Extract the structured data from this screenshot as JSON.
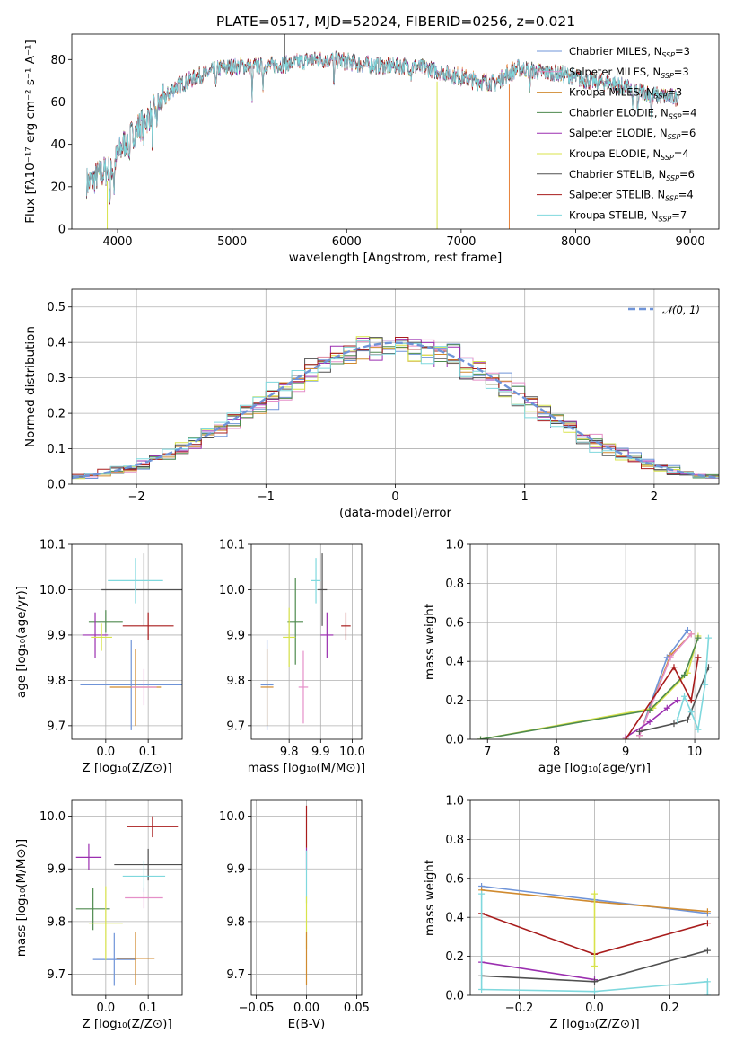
{
  "figure_title": "PLATE=0517, MJD=52024, FIBERID=0256, z=0.021",
  "colors": {
    "Chabrier MILES": "#6f94d8",
    "Salpeter MILES": "#e58fc8",
    "Kroupa MILES": "#d08a2f",
    "Chabrier ELODIE": "#4e8a4e",
    "Salpeter ELODIE": "#9b2fb0",
    "Kroupa ELODIE": "#d8e34a",
    "Chabrier STELIB": "#505050",
    "Salpeter STELIB": "#a81c1c",
    "Kroupa STELIB": "#7fd8dd",
    "orange_model": "#e8823a",
    "normal_dashed": "#6f94d8"
  },
  "chart_data": [
    {
      "id": "spectrum",
      "type": "line",
      "xlabel": "wavelength [Angstrom, rest frame]",
      "ylabel": "Flux [fλ10⁻¹⁷ erg cm⁻² s⁻¹ A⁻¹]",
      "xlim": [
        3600,
        9250
      ],
      "ylim": [
        0,
        92
      ],
      "xticks": [
        4000,
        5000,
        6000,
        7000,
        8000,
        9000
      ],
      "yticks": [
        0,
        20,
        40,
        60,
        80
      ],
      "grid": false,
      "legend_position": "top-right",
      "legend": [
        "Chabrier MILES, N_SSP=3",
        "Salpeter MILES, N_SSP=3",
        "Kroupa MILES, N_SSP=3",
        "Chabrier ELODIE, N_SSP=4",
        "Salpeter ELODIE, N_SSP=6",
        "Kroupa ELODIE, N_SSP=4",
        "Chabrier STELIB, N_SSP=6",
        "Salpeter STELIB, N_SSP=4",
        "Kroupa STELIB, N_SSP=7"
      ],
      "continuum": [
        [
          3750,
          22
        ],
        [
          3850,
          26
        ],
        [
          3950,
          29
        ],
        [
          4050,
          40
        ],
        [
          4150,
          46
        ],
        [
          4250,
          52
        ],
        [
          4350,
          58
        ],
        [
          4500,
          67
        ],
        [
          4700,
          72
        ],
        [
          4900,
          76
        ],
        [
          5100,
          77
        ],
        [
          5300,
          77
        ],
        [
          5500,
          78
        ],
        [
          5700,
          80
        ],
        [
          5900,
          80
        ],
        [
          6100,
          78
        ],
        [
          6300,
          77
        ],
        [
          6500,
          77
        ],
        [
          6700,
          76
        ],
        [
          6900,
          73
        ],
        [
          7100,
          70
        ],
        [
          7300,
          69
        ],
        [
          7500,
          76
        ],
        [
          7700,
          74
        ],
        [
          7900,
          73
        ],
        [
          8100,
          70
        ],
        [
          8300,
          69
        ],
        [
          8500,
          66
        ],
        [
          8700,
          63
        ],
        [
          8900,
          62
        ]
      ],
      "dropouts": [
        [
          3910,
          0
        ],
        [
          6790,
          0
        ],
        [
          7420,
          0
        ]
      ]
    },
    {
      "id": "residuals",
      "type": "line",
      "xlabel": "(data-model)/error",
      "ylabel": "Normed distribution",
      "xlim": [
        -2.5,
        2.5
      ],
      "ylim": [
        0,
        0.55
      ],
      "xticks": [
        -2,
        -1,
        0,
        1,
        2
      ],
      "yticks": [
        0.0,
        0.1,
        0.2,
        0.3,
        0.4,
        0.5
      ],
      "grid": true,
      "legend_position": "top-right",
      "legend": [
        "𝒩(0, 1)"
      ]
    },
    {
      "id": "age_vs_Z",
      "type": "scatter",
      "xlabel": "Z [log₁₀(Z/Z⊙)]",
      "ylabel": "age  [log₁₀(age/yr)]",
      "xlim": [
        -0.08,
        0.18
      ],
      "ylim": [
        9.67,
        10.1
      ],
      "xticks": [
        0.0,
        0.1
      ],
      "yticks": [
        9.7,
        9.8,
        9.9,
        10.0,
        10.1
      ],
      "grid": true,
      "points": [
        {
          "m": "Chabrier MILES",
          "x": 0.06,
          "y": 9.79,
          "xerr": 0.12,
          "yerr": 0.1
        },
        {
          "m": "Kroupa MILES",
          "x": 0.07,
          "y": 9.785,
          "xerr": 0.06,
          "yerr": 0.085
        },
        {
          "m": "Salpeter MILES",
          "x": 0.09,
          "y": 9.785,
          "xerr": 0.03,
          "yerr": 0.04
        },
        {
          "m": "Chabrier ELODIE",
          "x": 0.0,
          "y": 9.93,
          "xerr": 0.04,
          "yerr": 0.025
        },
        {
          "m": "Salpeter ELODIE",
          "x": -0.025,
          "y": 9.9,
          "xerr": 0.03,
          "yerr": 0.05
        },
        {
          "m": "Kroupa ELODIE",
          "x": -0.01,
          "y": 9.895,
          "xerr": 0.025,
          "yerr": 0.03
        },
        {
          "m": "Chabrier STELIB",
          "x": 0.09,
          "y": 10.0,
          "xerr": 0.1,
          "yerr": 0.08
        },
        {
          "m": "Salpeter STELIB",
          "x": 0.1,
          "y": 9.92,
          "xerr": 0.06,
          "yerr": 0.03
        },
        {
          "m": "Kroupa STELIB",
          "x": 0.07,
          "y": 10.02,
          "xerr": 0.065,
          "yerr": 0.05
        }
      ]
    },
    {
      "id": "age_vs_mass",
      "type": "scatter",
      "xlabel": "mass [log₁₀(M/M⊙)]",
      "xlim": [
        9.68,
        10.03
      ],
      "ylim": [
        9.67,
        10.1
      ],
      "xticks": [
        9.8,
        9.9,
        10.0
      ],
      "yticks": [
        9.7,
        9.8,
        9.9,
        10.0,
        10.1
      ],
      "grid": true,
      "points": [
        {
          "m": "Chabrier MILES",
          "x": 9.73,
          "y": 9.79,
          "xerr": 0.02,
          "yerr": 0.1
        },
        {
          "m": "Kroupa MILES",
          "x": 9.73,
          "y": 9.785,
          "xerr": 0.02,
          "yerr": 0.085
        },
        {
          "m": "Salpeter MILES",
          "x": 9.845,
          "y": 9.785,
          "xerr": 0.015,
          "yerr": 0.08
        },
        {
          "m": "Chabrier ELODIE",
          "x": 9.82,
          "y": 9.93,
          "xerr": 0.025,
          "yerr": 0.095
        },
        {
          "m": "Kroupa ELODIE",
          "x": 9.8,
          "y": 9.895,
          "xerr": 0.02,
          "yerr": 0.065
        },
        {
          "m": "Salpeter ELODIE",
          "x": 9.92,
          "y": 9.9,
          "xerr": 0.02,
          "yerr": 0.05
        },
        {
          "m": "Chabrier STELIB",
          "x": 9.905,
          "y": 10.0,
          "xerr": 0.015,
          "yerr": 0.08
        },
        {
          "m": "Salpeter STELIB",
          "x": 9.98,
          "y": 9.92,
          "xerr": 0.015,
          "yerr": 0.03
        },
        {
          "m": "Kroupa STELIB",
          "x": 9.885,
          "y": 10.02,
          "xerr": 0.015,
          "yerr": 0.05
        }
      ]
    },
    {
      "id": "massweight_vs_age",
      "type": "line",
      "xlabel": "age  [log₁₀(age/yr)]",
      "ylabel": "mass weight",
      "xlim": [
        6.75,
        10.35
      ],
      "ylim": [
        0,
        1.0
      ],
      "xticks": [
        7,
        8,
        9,
        10
      ],
      "yticks": [
        0.0,
        0.2,
        0.4,
        0.6,
        0.8,
        1.0
      ],
      "grid": true,
      "series": [
        {
          "m": "Chabrier MILES",
          "x": [
            9.2,
            9.6,
            9.9
          ],
          "y": [
            0.02,
            0.42,
            0.56
          ]
        },
        {
          "m": "Kroupa MILES",
          "x": [
            9.2,
            9.65,
            9.95
          ],
          "y": [
            0.02,
            0.43,
            0.54
          ]
        },
        {
          "m": "Salpeter MILES",
          "x": [
            9.2,
            9.65,
            9.95
          ],
          "y": [
            0.02,
            0.42,
            0.54
          ]
        },
        {
          "m": "Kroupa ELODIE",
          "x": [
            6.9,
            9.4,
            9.9,
            10.05
          ],
          "y": [
            0.0,
            0.16,
            0.34,
            0.53
          ]
        },
        {
          "m": "Chabrier ELODIE",
          "x": [
            6.9,
            9.35,
            9.85,
            10.05
          ],
          "y": [
            0.0,
            0.15,
            0.33,
            0.52
          ]
        },
        {
          "m": "Salpeter ELODIE",
          "x": [
            9.0,
            9.35,
            9.6,
            9.75
          ],
          "y": [
            0.01,
            0.09,
            0.16,
            0.2
          ]
        },
        {
          "m": "Chabrier STELIB",
          "x": [
            9.2,
            9.7,
            9.9,
            10.2
          ],
          "y": [
            0.04,
            0.08,
            0.1,
            0.37
          ]
        },
        {
          "m": "Salpeter STELIB",
          "x": [
            9.0,
            9.7,
            9.95,
            10.05
          ],
          "y": [
            0.0,
            0.37,
            0.2,
            0.42
          ]
        },
        {
          "m": "Kroupa STELIB",
          "x": [
            9.75,
            9.85,
            9.95,
            10.05,
            10.15,
            10.2
          ],
          "y": [
            0.1,
            0.22,
            0.14,
            0.05,
            0.28,
            0.52
          ]
        }
      ]
    },
    {
      "id": "mass_vs_Z",
      "type": "scatter",
      "xlabel": "Z [log₁₀(Z/Z⊙)]",
      "ylabel": "mass [log₁₀(M/M⊙)]",
      "xlim": [
        -0.08,
        0.18
      ],
      "ylim": [
        9.66,
        10.03
      ],
      "xticks": [
        0.0,
        0.1
      ],
      "yticks": [
        9.7,
        9.8,
        9.9,
        10.0
      ],
      "grid": true,
      "points": [
        {
          "m": "Chabrier MILES",
          "x": 0.02,
          "y": 9.728,
          "xerr": 0.05,
          "yerr": 0.05
        },
        {
          "m": "Kroupa MILES",
          "x": 0.07,
          "y": 9.73,
          "xerr": 0.045,
          "yerr": 0.05
        },
        {
          "m": "Salpeter MILES",
          "x": 0.09,
          "y": 9.845,
          "xerr": 0.045,
          "yerr": 0.02
        },
        {
          "m": "Chabrier ELODIE",
          "x": -0.03,
          "y": 9.824,
          "xerr": 0.04,
          "yerr": 0.04
        },
        {
          "m": "Kroupa ELODIE",
          "x": 0.0,
          "y": 9.797,
          "xerr": 0.04,
          "yerr": 0.07
        },
        {
          "m": "Salpeter ELODIE",
          "x": -0.04,
          "y": 9.922,
          "xerr": 0.03,
          "yerr": 0.025
        },
        {
          "m": "Chabrier STELIB",
          "x": 0.1,
          "y": 9.908,
          "xerr": 0.08,
          "yerr": 0.03
        },
        {
          "m": "Salpeter STELIB",
          "x": 0.11,
          "y": 9.98,
          "xerr": 0.06,
          "yerr": 0.02
        },
        {
          "m": "Kroupa STELIB",
          "x": 0.09,
          "y": 9.886,
          "xerr": 0.05,
          "yerr": 0.03
        }
      ]
    },
    {
      "id": "mass_vs_ebv",
      "type": "scatter",
      "xlabel": "E(B-V)",
      "xlim": [
        -0.055,
        0.055
      ],
      "ylim": [
        9.66,
        10.03
      ],
      "xticks": [
        -0.05,
        0.0,
        0.05
      ],
      "yticks": [
        9.7,
        9.8,
        9.9,
        10.0
      ],
      "grid": true,
      "points": [
        {
          "m": "Salpeter STELIB",
          "x": 0.0,
          "y": 9.98,
          "yerr": 0.04
        },
        {
          "m": "Salpeter ELODIE",
          "x": 0.0,
          "y": 9.92,
          "yerr": 0.02
        },
        {
          "m": "Kroupa STELIB",
          "x": 0.0,
          "y": 9.885,
          "yerr": 0.05
        },
        {
          "m": "Kroupa ELODIE",
          "x": 0.0,
          "y": 9.797,
          "yerr": 0.05
        },
        {
          "m": "Kroupa MILES",
          "x": 0.0,
          "y": 9.73,
          "yerr": 0.05
        }
      ]
    },
    {
      "id": "massweight_vs_Z",
      "type": "line",
      "xlabel": "Z [log₁₀(Z/Z⊙)]",
      "ylabel": "mass weight",
      "xlim": [
        -0.33,
        0.33
      ],
      "ylim": [
        0,
        1.0
      ],
      "xticks": [
        -0.2,
        0.0,
        0.2
      ],
      "yticks": [
        0.0,
        0.2,
        0.4,
        0.6,
        0.8,
        1.0
      ],
      "grid": true,
      "series": [
        {
          "m": "Chabrier MILES",
          "x": [
            -0.3,
            0.0,
            0.3
          ],
          "y": [
            0.56,
            0.49,
            0.42
          ]
        },
        {
          "m": "Kroupa MILES",
          "x": [
            -0.3,
            0.0,
            0.3
          ],
          "y": [
            0.54,
            0.48,
            0.43
          ]
        },
        {
          "m": "Salpeter STELIB",
          "x": [
            -0.3,
            0.0,
            0.3
          ],
          "y": [
            0.42,
            0.21,
            0.37
          ]
        },
        {
          "m": "Salpeter ELODIE",
          "x": [
            -0.3,
            0.0
          ],
          "y": [
            0.17,
            0.08
          ]
        },
        {
          "m": "Chabrier STELIB",
          "x": [
            -0.3,
            0.0,
            0.3
          ],
          "y": [
            0.1,
            0.07,
            0.23
          ]
        },
        {
          "m": "Kroupa STELIB",
          "x": [
            -0.3,
            -0.3,
            0.0,
            0.3,
            0.3
          ],
          "y": [
            0.52,
            0.03,
            0.02,
            0.07,
            0.0
          ]
        },
        {
          "m": "Kroupa ELODIE",
          "x": [
            0.0,
            0.0
          ],
          "y": [
            0.52,
            0.15
          ]
        }
      ]
    }
  ]
}
